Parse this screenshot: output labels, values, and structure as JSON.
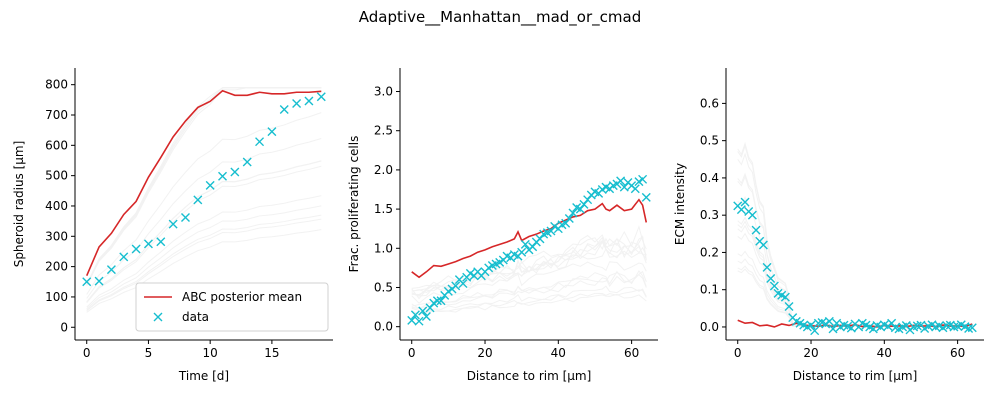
{
  "figure": {
    "suptitle": "Adaptive__Manhattan__mad_or_cmad"
  },
  "legend": {
    "mean_label": "ABC posterior mean",
    "data_label": "data"
  },
  "colors": {
    "mean": "#d62728",
    "data": "#17becf",
    "samples": "#cccccc"
  },
  "chart_data": [
    {
      "type": "line",
      "xlabel": "Time [d]",
      "ylabel": "Spheroid radius [μm]",
      "xlim": [
        -0.95,
        19.95
      ],
      "ylim": [
        -42,
        855
      ],
      "xticks": [
        0,
        5,
        10,
        15
      ],
      "yticks": [
        0,
        100,
        200,
        300,
        400,
        500,
        600,
        700,
        800
      ],
      "legend": "lower-right",
      "grid": false,
      "mean": {
        "x": [
          0,
          1,
          2,
          3,
          4,
          5,
          6,
          7,
          8,
          9,
          10,
          11,
          12,
          13,
          14,
          15,
          16,
          17,
          18,
          19
        ],
        "y": [
          170,
          265,
          310,
          372,
          415,
          495,
          560,
          628,
          680,
          725,
          745,
          780,
          765,
          765,
          775,
          770,
          770,
          775,
          775,
          778
        ]
      },
      "data": {
        "x": [
          0,
          1,
          2,
          3,
          4,
          5,
          6,
          7,
          8,
          9,
          10,
          11,
          12,
          13,
          14,
          15,
          16,
          17,
          18,
          19
        ],
        "y": [
          150,
          152,
          190,
          232,
          258,
          275,
          282,
          340,
          362,
          420,
          468,
          498,
          512,
          545,
          612,
          645,
          718,
          738,
          746,
          760
        ]
      }
    },
    {
      "type": "line",
      "xlabel": "Distance to rim [μm]",
      "ylabel": "Frac. proliferating cells",
      "xlim": [
        -3.2,
        67.2
      ],
      "ylim": [
        -0.17,
        3.3
      ],
      "xticks": [
        0,
        20,
        40,
        60
      ],
      "yticks": [
        0.0,
        0.5,
        1.0,
        1.5,
        2.0,
        2.5,
        3.0
      ],
      "grid": false,
      "mean": {
        "x": [
          0,
          2,
          4,
          6,
          8,
          10,
          12,
          14,
          16,
          18,
          20,
          22,
          24,
          26,
          28,
          29,
          30,
          32,
          34,
          36,
          38,
          40,
          42,
          44,
          46,
          48,
          50,
          52,
          53,
          54,
          56,
          58,
          60,
          62,
          63,
          64
        ],
        "y": [
          0.7,
          0.63,
          0.7,
          0.78,
          0.77,
          0.8,
          0.83,
          0.87,
          0.9,
          0.95,
          0.98,
          1.02,
          1.05,
          1.08,
          1.12,
          1.21,
          1.1,
          1.15,
          1.18,
          1.22,
          1.25,
          1.32,
          1.36,
          1.4,
          1.42,
          1.48,
          1.5,
          1.57,
          1.5,
          1.48,
          1.55,
          1.48,
          1.5,
          1.62,
          1.55,
          1.33
        ]
      },
      "data": {
        "x": [
          0,
          1,
          2,
          3,
          4,
          5,
          6,
          7,
          8,
          9,
          10,
          11,
          12,
          13,
          14,
          15,
          16,
          17,
          18,
          19,
          20,
          21,
          22,
          23,
          24,
          25,
          26,
          27,
          28,
          29,
          30,
          31,
          32,
          33,
          34,
          35,
          36,
          37,
          38,
          39,
          40,
          41,
          42,
          43,
          44,
          45,
          46,
          47,
          48,
          49,
          50,
          51,
          52,
          53,
          54,
          55,
          56,
          57,
          58,
          59,
          60,
          61,
          62,
          63,
          64
        ],
        "y": [
          0.08,
          0.15,
          0.07,
          0.2,
          0.13,
          0.24,
          0.3,
          0.33,
          0.33,
          0.4,
          0.45,
          0.48,
          0.52,
          0.6,
          0.55,
          0.63,
          0.68,
          0.65,
          0.7,
          0.65,
          0.7,
          0.75,
          0.78,
          0.8,
          0.82,
          0.85,
          0.9,
          0.88,
          0.92,
          0.9,
          0.95,
          1.05,
          0.98,
          1.02,
          1.08,
          1.12,
          1.18,
          1.2,
          1.22,
          1.28,
          1.25,
          1.3,
          1.32,
          1.38,
          1.45,
          1.52,
          1.5,
          1.56,
          1.62,
          1.68,
          1.72,
          1.7,
          1.75,
          1.78,
          1.76,
          1.8,
          1.82,
          1.86,
          1.78,
          1.84,
          1.8,
          1.76,
          1.85,
          1.88,
          1.65
        ]
      }
    },
    {
      "type": "line",
      "xlabel": "Distance to rim [μm]",
      "ylabel": "ECM intensity",
      "xlim": [
        -3.2,
        67.2
      ],
      "ylim": [
        -0.035,
        0.695
      ],
      "xticks": [
        0,
        20,
        40,
        60
      ],
      "yticks": [
        0.0,
        0.1,
        0.2,
        0.3,
        0.4,
        0.5,
        0.6
      ],
      "grid": false,
      "mean": {
        "x": [
          0,
          2,
          4,
          6,
          8,
          10,
          12,
          14,
          16,
          18,
          20,
          22,
          24,
          26,
          28,
          30,
          32,
          34,
          36,
          38,
          40,
          42,
          44,
          46,
          48,
          50,
          52,
          54,
          56,
          58,
          60,
          62,
          64
        ],
        "y": [
          0.018,
          0.01,
          0.012,
          0.003,
          0.005,
          0.0,
          0.008,
          0.004,
          0.01,
          0.005,
          0.003,
          0.002,
          0.005,
          0.001,
          0.004,
          0.002,
          0.006,
          0.001,
          0.003,
          0.0,
          0.004,
          0.002,
          0.003,
          0.001,
          0.004,
          0.002,
          0.003,
          0.001,
          0.005,
          0.002,
          0.003,
          0.001,
          0.008
        ]
      },
      "data": {
        "x": [
          0,
          1,
          2,
          3,
          4,
          5,
          6,
          7,
          8,
          9,
          10,
          11,
          12,
          13,
          14,
          15,
          16,
          17,
          18,
          19,
          20,
          21,
          22,
          23,
          24,
          25,
          26,
          27,
          28,
          29,
          30,
          31,
          32,
          33,
          34,
          35,
          36,
          37,
          38,
          39,
          40,
          41,
          42,
          43,
          44,
          45,
          46,
          47,
          48,
          49,
          50,
          51,
          52,
          53,
          54,
          55,
          56,
          57,
          58,
          59,
          60,
          61,
          62,
          63,
          64
        ],
        "y": [
          0.325,
          0.315,
          0.335,
          0.31,
          0.3,
          0.26,
          0.23,
          0.22,
          0.16,
          0.13,
          0.11,
          0.09,
          0.085,
          0.08,
          0.055,
          0.025,
          0.015,
          0.01,
          0.005,
          0.0,
          0.005,
          -0.01,
          0.01,
          0.012,
          0.008,
          0.015,
          -0.005,
          0.01,
          0.0,
          0.005,
          0.002,
          -0.003,
          0.008,
          0.0,
          0.01,
          0.005,
          0.0,
          -0.005,
          0.004,
          0.0,
          0.006,
          0.002,
          0.01,
          -0.002,
          -0.005,
          0.0,
          0.004,
          -0.008,
          0.0,
          0.003,
          0.005,
          -0.004,
          0.002,
          0.006,
          0.0,
          0.003,
          -0.002,
          0.004,
          0.005,
          0.0,
          0.002,
          0.006,
          0.001,
          -0.004,
          -0.002
        ]
      }
    }
  ]
}
